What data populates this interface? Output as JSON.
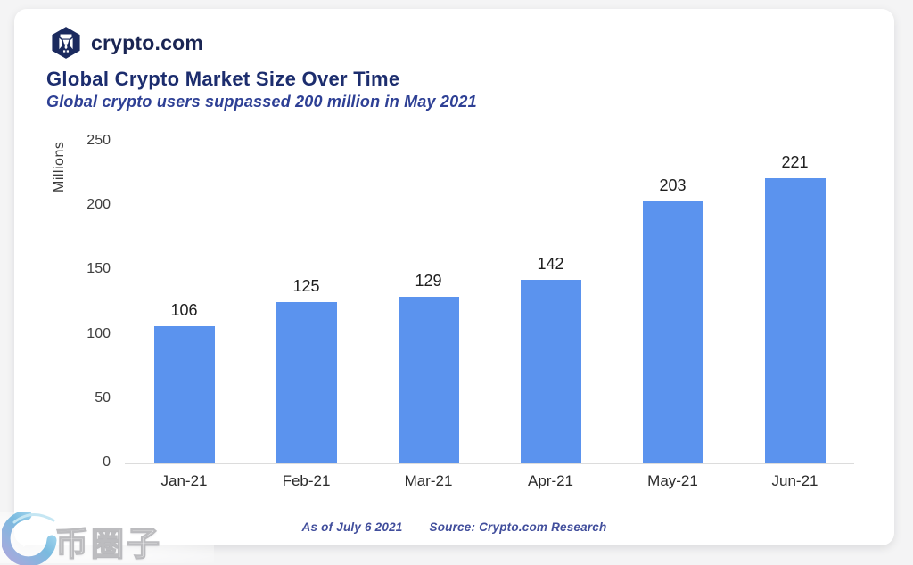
{
  "page": {
    "background": "#f4f4f5",
    "card_background": "#ffffff"
  },
  "header": {
    "logo_text": "crypto.com",
    "title": "Global Crypto Market Size Over Time",
    "subtitle": "Global crypto users suppassed 200 million in May 2021"
  },
  "chart_data": {
    "type": "bar",
    "title": "Global Crypto Market Size Over Time",
    "subtitle": "Global crypto users suppassed 200 million in May 2021",
    "categories": [
      "Jan-21",
      "Feb-21",
      "Mar-21",
      "Apr-21",
      "May-21",
      "Jun-21"
    ],
    "values": [
      106,
      125,
      129,
      142,
      203,
      221
    ],
    "data_labels": [
      106,
      125,
      129,
      142,
      203,
      221
    ],
    "xlabel": "",
    "ylabel": "Millions",
    "yticks": [
      0,
      50,
      100,
      150,
      200,
      250
    ],
    "ylim": [
      0,
      250
    ],
    "grid": false,
    "legend": false,
    "bar_color": "#5b93ee"
  },
  "footer": {
    "as_of": "As of July 6 2021",
    "source": "Source: Crypto.com Research"
  },
  "watermark": {
    "text": "币圈子",
    "logo": "blue-swirl-logo"
  }
}
